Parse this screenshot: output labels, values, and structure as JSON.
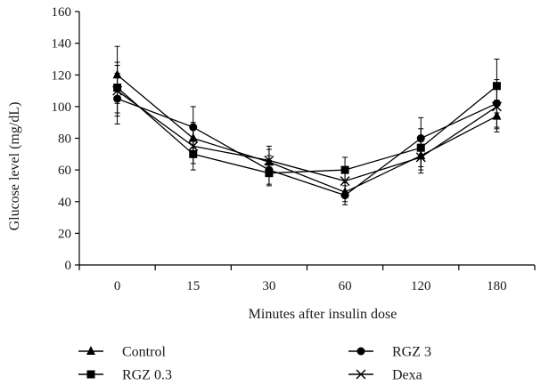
{
  "chart_data": {
    "type": "line",
    "title": "",
    "xlabel": "Minutes after insulin dose",
    "ylabel": "Glucose level (mg/dL)",
    "categories": [
      "0",
      "15",
      "30",
      "60",
      "120",
      "180"
    ],
    "ylim": [
      0,
      160
    ],
    "yticks": [
      0,
      20,
      40,
      60,
      80,
      100,
      120,
      140,
      160
    ],
    "grid": false,
    "legend_position": "bottom",
    "series": [
      {
        "name": "Control",
        "marker": "triangle",
        "color": "#000000",
        "values": [
          120,
          80,
          65,
          46,
          69,
          94
        ],
        "errors": [
          18,
          10,
          8,
          6,
          9,
          10
        ]
      },
      {
        "name": "RGZ 0.3",
        "marker": "square",
        "color": "#000000",
        "values": [
          112,
          70,
          58,
          60,
          74,
          113
        ],
        "errors": [
          16,
          10,
          8,
          8,
          12,
          17
        ]
      },
      {
        "name": "RGZ 3",
        "marker": "circle",
        "color": "#000000",
        "values": [
          105,
          87,
          60,
          44,
          80,
          102
        ],
        "errors": [
          16,
          13,
          9,
          6,
          13,
          15
        ]
      },
      {
        "name": "Dexa",
        "marker": "x",
        "color": "#000000",
        "values": [
          110,
          75,
          66,
          53,
          68,
          100
        ],
        "errors": [
          16,
          11,
          9,
          7,
          10,
          14
        ]
      }
    ]
  }
}
